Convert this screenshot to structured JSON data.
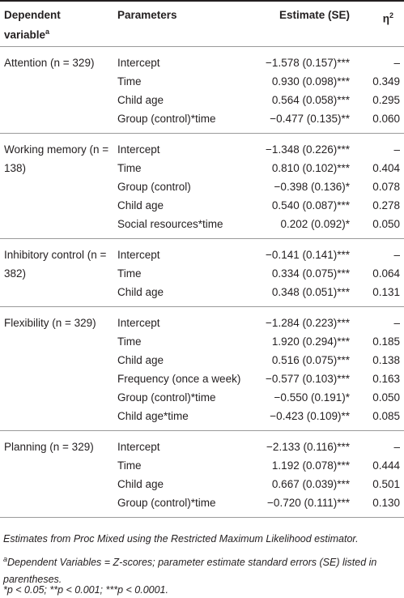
{
  "header": {
    "dependent_variable": "Dependent variable",
    "dependent_variable_sup": "a",
    "parameters": "Parameters",
    "estimate": "Estimate (SE)",
    "eta": "η",
    "eta_sup": "2"
  },
  "groups": [
    {
      "label": "Attention (n = 329)",
      "rows": [
        [
          "Intercept",
          "−1.578 (0.157)***",
          "–"
        ],
        [
          "Time",
          "0.930 (0.098)***",
          "0.349"
        ],
        [
          "Child age",
          "0.564 (0.058)***",
          "0.295"
        ],
        [
          "Group (control)*time",
          "−0.477 (0.135)**",
          "0.060"
        ]
      ]
    },
    {
      "label": "Working memory (n = 138)",
      "rows": [
        [
          "Intercept",
          "−1.348 (0.226)***",
          "–"
        ],
        [
          "Time",
          "0.810 (0.102)***",
          "0.404"
        ],
        [
          "Group (control)",
          "−0.398 (0.136)*",
          "0.078"
        ],
        [
          "Child age",
          "0.540 (0.087)***",
          "0.278"
        ],
        [
          "Social resources*time",
          "0.202 (0.092)*",
          "0.050"
        ]
      ]
    },
    {
      "label": "Inhibitory control (n = 382)",
      "rows": [
        [
          "Intercept",
          "−0.141 (0.141)***",
          "–"
        ],
        [
          "Time",
          "0.334 (0.075)***",
          "0.064"
        ],
        [
          "Child age",
          "0.348 (0.051)***",
          "0.131"
        ]
      ]
    },
    {
      "label": "Flexibility (n = 329)",
      "rows": [
        [
          "Intercept",
          "−1.284 (0.223)***",
          "–"
        ],
        [
          "Time",
          "1.920 (0.294)***",
          "0.185"
        ],
        [
          "Child age",
          "0.516 (0.075)***",
          "0.138"
        ],
        [
          "Frequency (once a week)",
          "−0.577 (0.103)***",
          "0.163"
        ],
        [
          "Group (control)*time",
          "−0.550 (0.191)*",
          "0.050"
        ],
        [
          "Child age*time",
          "−0.423 (0.109)**",
          "0.085"
        ]
      ]
    },
    {
      "label": "Planning (n = 329)",
      "rows": [
        [
          "Intercept",
          "−2.133 (0.116)***",
          "–"
        ],
        [
          "Time",
          "1.192 (0.078)***",
          "0.444"
        ],
        [
          "Child age",
          "0.667 (0.039)***",
          "0.501"
        ],
        [
          "Group (control)*time",
          "−0.720 (0.111)***",
          "0.130"
        ]
      ]
    }
  ],
  "notes": {
    "main": "Estimates from Proc Mixed using the Restricted Maximum Likelihood estimator.",
    "a_marker": "a",
    "a_text": "Dependent Variables = Z-scores; parameter estimate standard errors (SE) listed in parentheses.",
    "p_values": "*p < 0.05; **p < 0.001; ***p < 0.0001."
  }
}
